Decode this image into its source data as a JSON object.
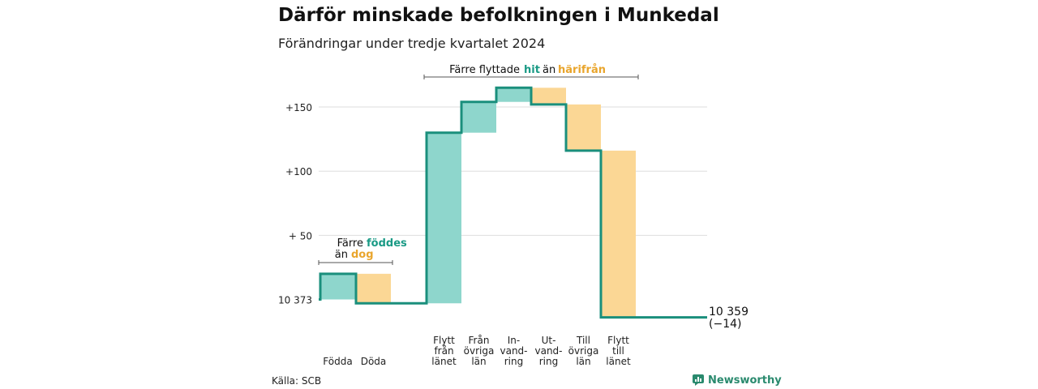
{
  "title": "Därför minskade befolkningen i Munkedal",
  "subtitle": "Förändringar under tredje kvartalet 2024",
  "source": "Källa: SCB",
  "brand": "Newsworthy",
  "colors": {
    "increase": "#8ed6cc",
    "decrease": "#fbd795",
    "line": "#1a8f7c",
    "grid": "#dddddd",
    "hit_text": "#1a9a85",
    "harifran_text": "#e9a52c"
  },
  "annotations": {
    "birth_line1": "Färre",
    "birth_word1": "föddes",
    "birth_line2": "än",
    "birth_word2": "dog",
    "move_prefix": "Färre flyttade",
    "move_word1": "hit",
    "move_mid": "än",
    "move_word2": "härifrån"
  },
  "chart_data": {
    "type": "waterfall",
    "title": "Därför minskade befolkningen i Munkedal",
    "subtitle": "Förändringar under tredje kvartalet 2024",
    "start_value": 10373,
    "start_label": "10 373",
    "end_value": 10359,
    "end_label_line1": "10 359",
    "end_label_line2": "(−14)",
    "y_ticks": [
      {
        "value": 150,
        "label": "+150"
      },
      {
        "value": 100,
        "label": "+100"
      },
      {
        "value": 50,
        "label": "+ 50"
      },
      {
        "value": 0,
        "label": "10 373"
      }
    ],
    "ylim": [
      -14,
      165
    ],
    "categories": [
      {
        "label": [
          "Födda"
        ],
        "change": 20,
        "from": 0,
        "to": 20
      },
      {
        "label": [
          "Döda"
        ],
        "change": -23,
        "from": 20,
        "to": -3
      },
      {
        "label": [
          "Flytt",
          "från",
          "länet"
        ],
        "change": 133,
        "from": -3,
        "to": 130
      },
      {
        "label": [
          "Från",
          "övriga",
          "län"
        ],
        "change": 24,
        "from": 130,
        "to": 154
      },
      {
        "label": [
          "In-",
          "vand-",
          "ring"
        ],
        "change": 11,
        "from": 154,
        "to": 165
      },
      {
        "label": [
          "Ut-",
          "vand-",
          "ring"
        ],
        "change": -13,
        "from": 165,
        "to": 152
      },
      {
        "label": [
          "Till",
          "övriga",
          "län"
        ],
        "change": -36,
        "from": 152,
        "to": 116
      },
      {
        "label": [
          "Flytt",
          "till",
          "länet"
        ],
        "change": -130,
        "from": 116,
        "to": -14
      }
    ]
  }
}
